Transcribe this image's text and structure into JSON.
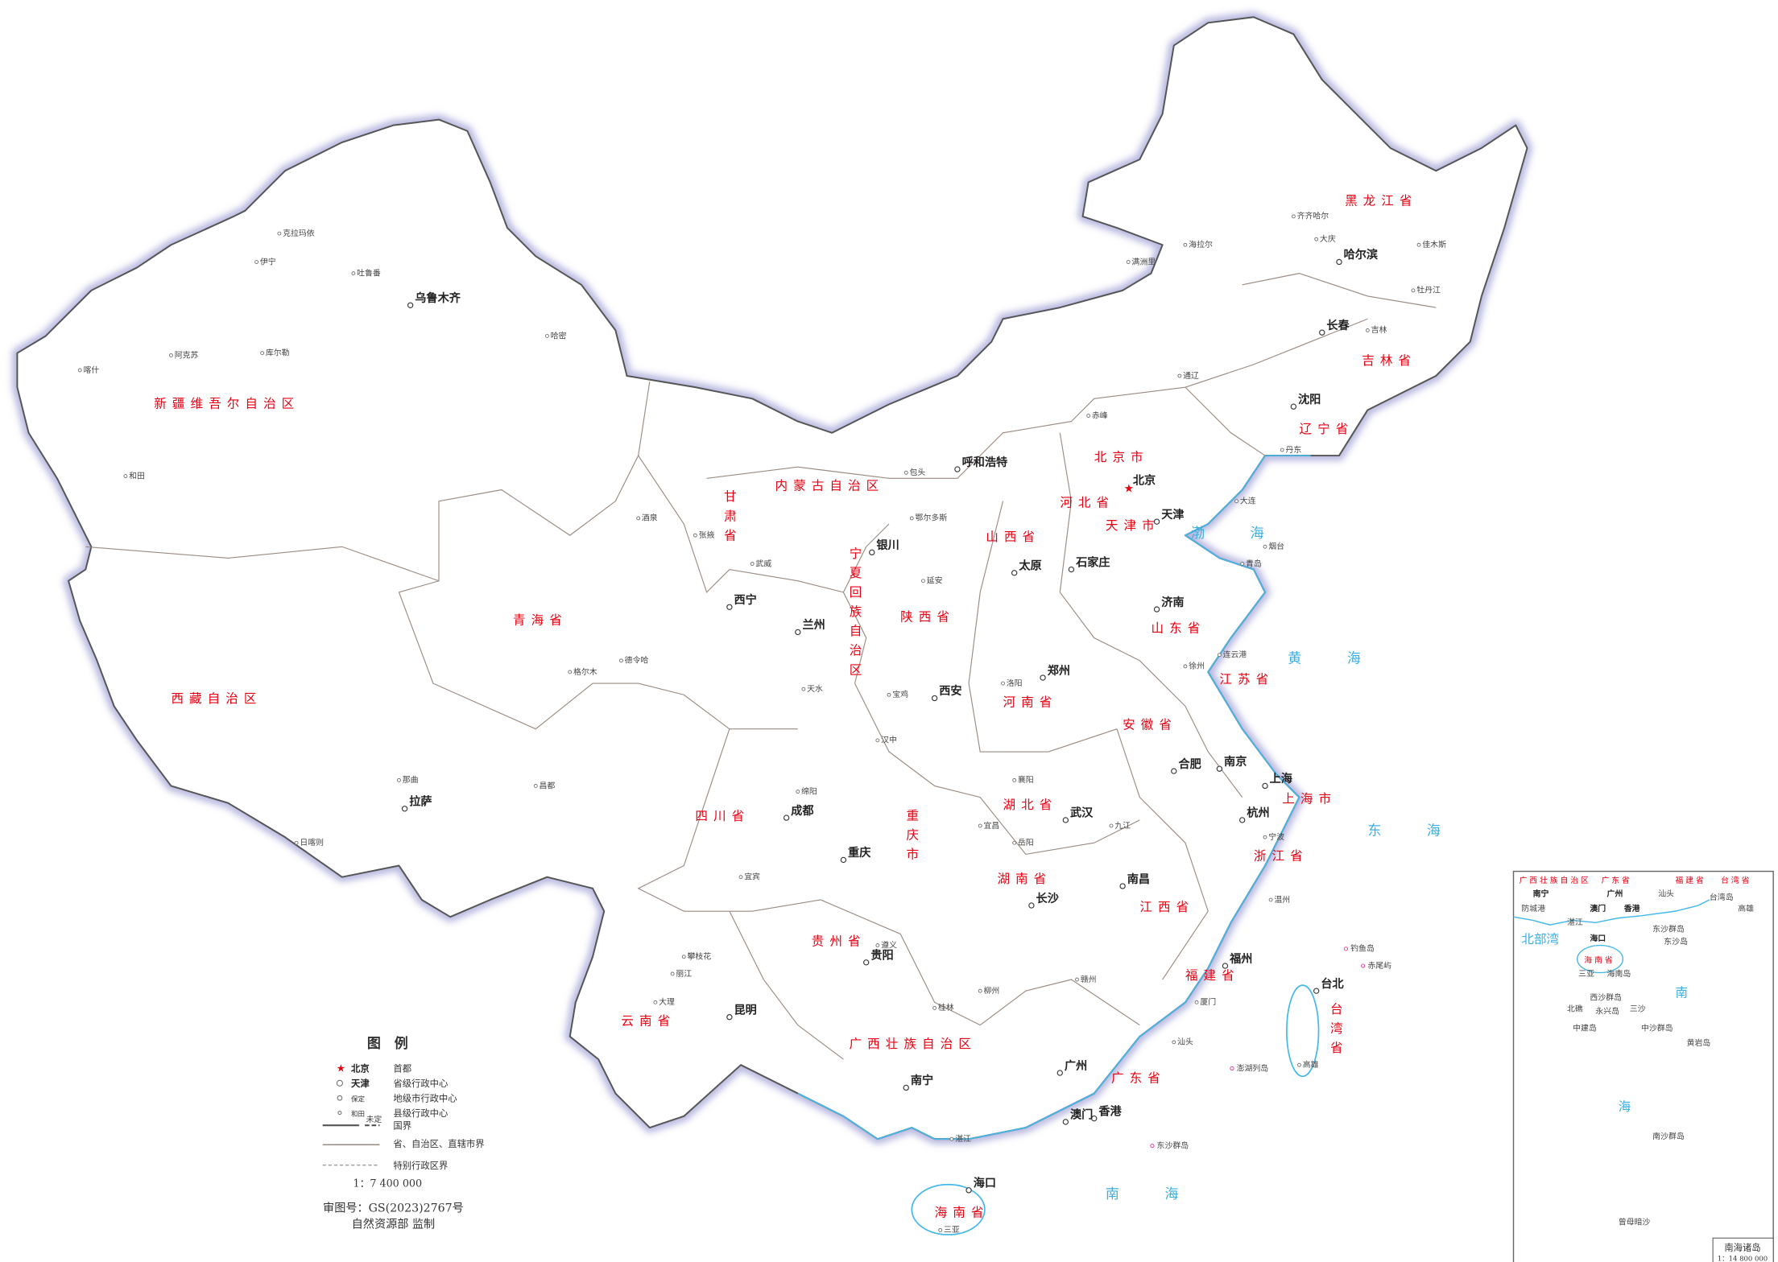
{
  "colors": {
    "border_glow": "#b8b8e0",
    "land": "#ffffff",
    "province_border": "#9a8a80",
    "coast": "#44b8ea",
    "label_red": "#e60012",
    "sea_blue": "#3aaee0",
    "islands": "#e0409a"
  },
  "provinces": [
    "新疆维吾尔自治区",
    "西藏自治区",
    "青海省",
    "甘肃省",
    "内蒙古自治区",
    "黑龙江省",
    "吉林省",
    "辽宁省",
    "河北省",
    "山西省",
    "陕西省",
    "宁夏回族自治区",
    "山东省",
    "河南省",
    "江苏省",
    "安徽省",
    "湖北省",
    "四川省",
    "重庆市",
    "贵州省",
    "云南省",
    "广西壮族自治区",
    "广东省",
    "湖南省",
    "江西省",
    "浙江省",
    "福建省",
    "台湾省",
    "海南省",
    "上海市",
    "北京市",
    "天津市"
  ],
  "cities": [
    "乌鲁木齐",
    "拉萨",
    "西宁",
    "兰州",
    "银川",
    "呼和浩特",
    "哈尔滨",
    "长春",
    "沈阳",
    "北京",
    "天津",
    "石家庄",
    "太原",
    "济南",
    "郑州",
    "西安",
    "成都",
    "重庆",
    "武汉",
    "合肥",
    "南京",
    "上海",
    "杭州",
    "南昌",
    "长沙",
    "福州",
    "台北",
    "贵阳",
    "昆明",
    "南宁",
    "广州",
    "香港",
    "澳门",
    "海口"
  ],
  "minor_cities": [
    "喀什",
    "和田",
    "阿克苏",
    "库尔勒",
    "哈密",
    "伊宁",
    "克拉玛依",
    "吐鲁番",
    "日喀则",
    "昌都",
    "那曲",
    "格尔木",
    "德令哈",
    "酒泉",
    "张掖",
    "武威",
    "天水",
    "包头",
    "鄂尔多斯",
    "赤峰",
    "通辽",
    "海拉尔",
    "满洲里",
    "齐齐哈尔",
    "大庆",
    "牡丹江",
    "佳木斯",
    "吉林",
    "丹东",
    "大连",
    "青岛",
    "烟台",
    "徐州",
    "连云港",
    "洛阳",
    "宝鸡",
    "汉中",
    "延安",
    "绵阳",
    "宜宾",
    "攀枝花",
    "遵义",
    "大理",
    "丽江",
    "桂林",
    "柳州",
    "湛江",
    "汕头",
    "厦门",
    "温州",
    "宁波",
    "赣州",
    "九江",
    "岳阳",
    "宜昌",
    "襄阳",
    "三亚",
    "高雄"
  ],
  "seas": [
    "渤海",
    "黄海",
    "东海",
    "南海"
  ],
  "legend": {
    "title": "图　例",
    "items": [
      {
        "sample": "北京",
        "label": "首都",
        "icon": "star-icon"
      },
      {
        "sample": "天津",
        "label": "省级行政中心",
        "icon": "circle-dot-icon"
      },
      {
        "sample": "保定",
        "label": "地级市行政中心",
        "icon": "circle-icon"
      },
      {
        "sample": "和田",
        "label": "县级行政中心",
        "icon": "small-circle-icon"
      }
    ],
    "lines": [
      {
        "label": "国界",
        "note": "未定"
      },
      {
        "label": "省、自治区、直辖市界"
      },
      {
        "label": "特别行政区界"
      }
    ],
    "scale": "1：7 400 000",
    "approval": "审图号：GS(2023)2767号",
    "publisher": "自然资源部 监制"
  },
  "inset": {
    "title": "南海诸岛",
    "scale": "1：14 800 000",
    "labels": [
      "广西壮族自治区",
      "广东省",
      "福建省",
      "台湾省",
      "南宁",
      "广州",
      "澳门",
      "香港",
      "汕头",
      "台湾岛",
      "高雄",
      "防城港",
      "湛江",
      "北部湾",
      "海口",
      "海南省",
      "三亚",
      "海南岛",
      "东沙群岛",
      "东沙岛",
      "西沙群岛",
      "三沙",
      "永兴岛",
      "北礁",
      "中建岛",
      "中沙群岛",
      "黄岩岛",
      "南",
      "海",
      "南沙群岛",
      "曾母暗沙"
    ]
  },
  "islands": [
    "东沙群岛",
    "钓鱼岛",
    "赤尾屿",
    "澎湖列岛"
  ]
}
